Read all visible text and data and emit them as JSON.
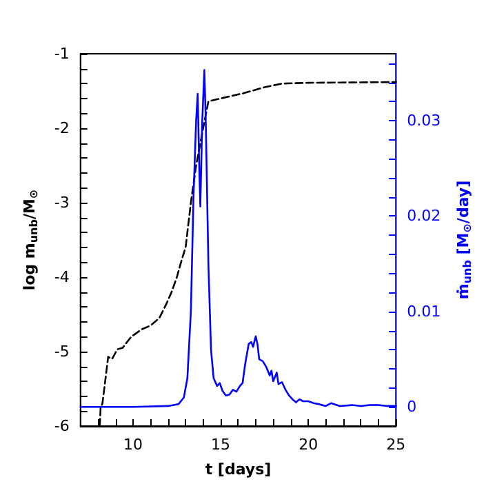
{
  "chart_data": {
    "type": "line",
    "xlabel": "t [days]",
    "ylabel": "log m$_{unb}$/M$_{⊙}$",
    "y2label": "ṁ$_{unb}$ [M$_{⊙}$/day]",
    "xlim": [
      7,
      25
    ],
    "ylim": [
      -6,
      -1
    ],
    "y2lim": [
      -0.002,
      0.037
    ],
    "xticks": [
      {
        "value": 8,
        "label": null
      },
      {
        "value": 9,
        "label": null
      },
      10,
      {
        "value": 11,
        "label": null
      },
      {
        "value": 12,
        "label": null
      },
      {
        "value": 13,
        "label": null
      },
      {
        "value": 14,
        "label": null
      },
      15,
      {
        "value": 16,
        "label": null
      },
      {
        "value": 17,
        "label": null
      },
      {
        "value": 18,
        "label": null
      },
      {
        "value": 19,
        "label": null
      },
      20,
      {
        "value": 21,
        "label": null
      },
      {
        "value": 22,
        "label": null
      },
      {
        "value": 23,
        "label": null
      },
      {
        "value": 24,
        "label": null
      },
      25
    ],
    "yticks": [
      -6,
      {
        "value": -5.8,
        "label": null
      },
      {
        "value": -5.6,
        "label": null
      },
      {
        "value": -5.4,
        "label": null
      },
      {
        "value": -5.2,
        "label": null
      },
      -5,
      {
        "value": -4.8,
        "label": null
      },
      {
        "value": -4.6,
        "label": null
      },
      {
        "value": -4.4,
        "label": null
      },
      {
        "value": -4.2,
        "label": null
      },
      -4,
      {
        "value": -3.8,
        "label": null
      },
      {
        "value": -3.6,
        "label": null
      },
      {
        "value": -3.4,
        "label": null
      },
      {
        "value": -3.2,
        "label": null
      },
      -3,
      {
        "value": -2.8,
        "label": null
      },
      {
        "value": -2.6,
        "label": null
      },
      {
        "value": -2.4,
        "label": null
      },
      {
        "value": -2.2,
        "label": null
      },
      -2,
      {
        "value": -1.8,
        "label": null
      },
      {
        "value": -1.6,
        "label": null
      },
      {
        "value": -1.4,
        "label": null
      },
      {
        "value": -1.2,
        "label": null
      },
      -1
    ],
    "y2ticks": [
      0,
      {
        "value": 0.002,
        "label": null
      },
      {
        "value": 0.004,
        "label": null
      },
      {
        "value": 0.006,
        "label": null
      },
      {
        "value": 0.008,
        "label": null
      },
      0.01,
      {
        "value": 0.012,
        "label": null
      },
      {
        "value": 0.014,
        "label": null
      },
      {
        "value": 0.016,
        "label": null
      },
      {
        "value": 0.018,
        "label": null
      },
      0.02,
      {
        "value": 0.022,
        "label": null
      },
      {
        "value": 0.024,
        "label": null
      },
      {
        "value": 0.026,
        "label": null
      },
      {
        "value": 0.028,
        "label": null
      },
      0.03,
      {
        "value": 0.032,
        "label": null
      },
      {
        "value": 0.034,
        "label": null
      },
      {
        "value": 0.036,
        "label": null
      }
    ],
    "grid": false,
    "marker": "none",
    "series": [
      {
        "color": "#000000",
        "line_style": "dashed",
        "x": [
          8.1,
          8.15,
          8.25,
          8.43,
          8.58,
          8.8,
          9.1,
          9.4,
          9.9,
          10.5,
          11.0,
          11.5,
          11.9,
          12.2,
          12.5,
          12.8,
          13.0,
          13.3,
          13.6,
          14.0,
          14.3,
          15.0,
          16.3,
          17.5,
          18.5,
          20.0,
          25.0
        ],
        "values": [
          -6,
          -5.75,
          -5.7,
          -5.36,
          -5.07,
          -5.1,
          -4.97,
          -4.95,
          -4.8,
          -4.7,
          -4.65,
          -4.55,
          -4.36,
          -4.2,
          -4.0,
          -3.75,
          -3.6,
          -3.0,
          -2.5,
          -2.0,
          -1.64,
          -1.6,
          -1.53,
          -1.45,
          -1.4,
          -1.39,
          -1.38
        ]
      },
      {
        "color": "#0000ff",
        "line_style": "solid",
        "axis": "y2",
        "x": [
          7,
          10,
          12,
          12.6,
          12.9,
          13.1,
          13.3,
          13.45,
          13.6,
          13.69,
          13.78,
          13.84,
          13.95,
          14.07,
          14.15,
          14.3,
          14.45,
          14.6,
          14.8,
          14.95,
          15.1,
          15.3,
          15.5,
          15.7,
          15.9,
          16.1,
          16.25,
          16.4,
          16.6,
          16.75,
          16.85,
          17.0,
          17.1,
          17.2,
          17.4,
          17.6,
          17.8,
          17.9,
          18.0,
          18.2,
          18.3,
          18.5,
          18.7,
          18.9,
          19.1,
          19.3,
          19.5,
          19.7,
          20,
          20.3,
          20.6,
          21,
          21.3,
          21.8,
          22.5,
          23,
          23.5,
          24,
          24.5,
          25
        ],
        "values": [
          0,
          0,
          0.0001,
          0.0003,
          0.001,
          0.003,
          0.01,
          0.022,
          0.03,
          0.0328,
          0.025,
          0.021,
          0.03,
          0.0353,
          0.03,
          0.015,
          0.006,
          0.003,
          0.0022,
          0.0025,
          0.0017,
          0.0012,
          0.0013,
          0.0018,
          0.0016,
          0.0022,
          0.0025,
          0.0045,
          0.0066,
          0.0068,
          0.0063,
          0.0074,
          0.0066,
          0.005,
          0.0048,
          0.0042,
          0.0033,
          0.0038,
          0.0027,
          0.0036,
          0.0024,
          0.0026,
          0.0018,
          0.0012,
          0.0008,
          0.0005,
          0.0008,
          0.0006,
          0.0006,
          0.0004,
          0.0003,
          0.0001,
          0.0004,
          0.0001,
          0.0002,
          0.0001,
          0.0002,
          0.0002,
          0.0001,
          0.0001
        ]
      }
    ]
  }
}
